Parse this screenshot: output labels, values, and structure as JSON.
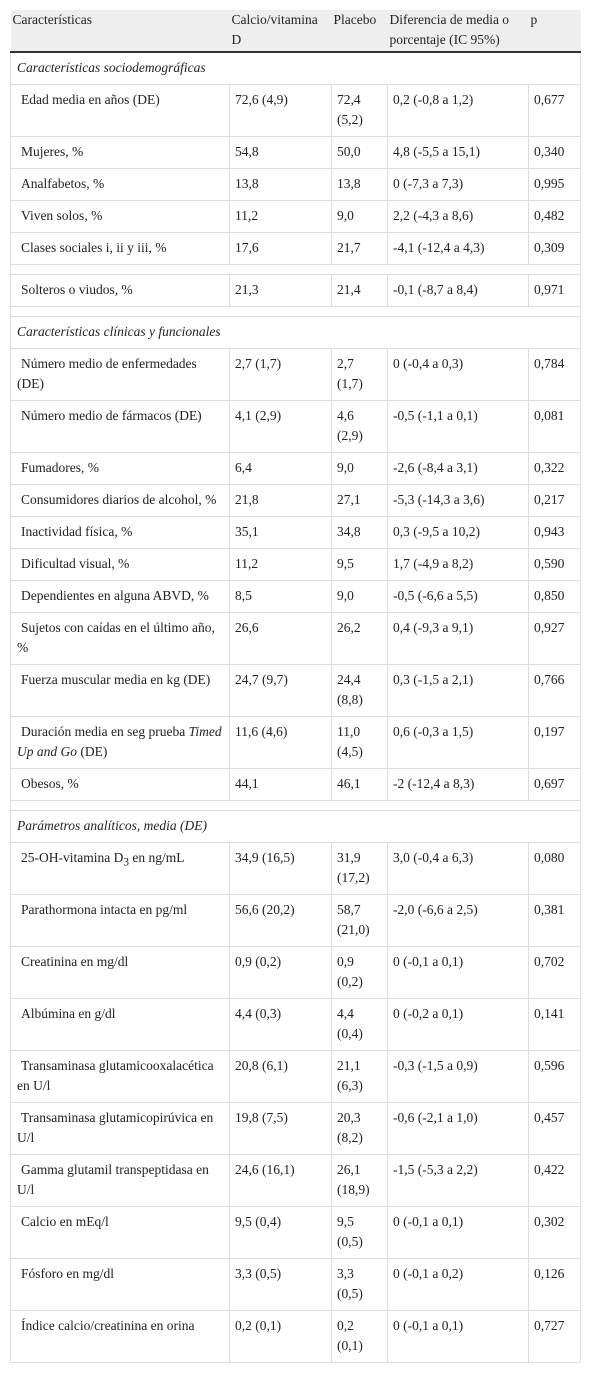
{
  "table": {
    "header": [
      "Características",
      "Calcio/vitamina D",
      "Placebo",
      "Diferencia de media o porcentaje (IC 95%)",
      "p"
    ],
    "sections": [
      {
        "title": "Características sociodemográficas",
        "rows": [
          [
            "Edad media en años (DE)",
            "72,6 (4,9)",
            "72,4 (5,2)",
            "0,2 (-0,8 a 1,2)",
            "0,677"
          ],
          [
            "Mujeres, %",
            "54,8",
            "50,0",
            "4,8 (-5,5 a 15,1)",
            "0,340"
          ],
          [
            "Analfabetos, %",
            "13,8",
            "13,8",
            "0 (-7,3 a 7,3)",
            "0,995"
          ],
          [
            "Viven solos, %",
            "11,2",
            "9,0",
            "2,2 (-4,3 a 8,6)",
            "0,482"
          ],
          [
            "Clases sociales i, ii y iii, %",
            "17,6",
            "21,7",
            "-4,1 (-12,4 a 4,3)",
            "0,309"
          ],
          null,
          [
            "Solteros o viudos, %",
            "21,3",
            "21,4",
            "-0,1 (-8,7 a 8,4)",
            "0,971"
          ]
        ]
      },
      {
        "title": "Características clínicas y funcionales",
        "rows": [
          [
            "Número medio de enfermedades (DE)",
            "2,7 (1,7)",
            "2,7 (1,7)",
            "0 (-0,4 a 0,3)",
            "0,784"
          ],
          [
            "Número medio de fármacos (DE)",
            "4,1 (2,9)",
            "4,6 (2,9)",
            "-0,5 (-1,1 a 0,1)",
            "0,081"
          ],
          [
            "Fumadores, %",
            "6,4",
            "9,0",
            "-2,6 (-8,4 a 3,1)",
            "0,322"
          ],
          [
            "Consumidores diarios de alcohol, %",
            "21,8",
            "27,1",
            "-5,3 (-14,3 a 3,6)",
            "0,217"
          ],
          [
            "Inactividad física, %",
            "35,1",
            "34,8",
            "0,3 (-9,5 a 10,2)",
            "0,943"
          ],
          [
            "Dificultad visual, %",
            "11,2",
            "9,5",
            "1,7 (-4,9 a 8,2)",
            "0,590"
          ],
          [
            "Dependientes en alguna ABVD, %",
            "8,5",
            "9,0",
            "-0,5 (-6,6 a 5,5)",
            "0,850"
          ],
          [
            "Sujetos con caídas en el último año, %",
            "26,6",
            "26,2",
            "0,4 (-9,3 a 9,1)",
            "0,927"
          ],
          [
            "Fuerza muscular media en kg (DE)",
            "24,7 (9,7)",
            "24,4 (8,8)",
            "0,3 (-1,5 a 2,1)",
            "0,766"
          ],
          [
            [
              {
                "text": "Duración media en seg prueba "
              },
              {
                "text": "Timed Up and Go",
                "italic": true
              },
              {
                "text": " (DE)"
              }
            ],
            "11,6 (4,6)",
            "11,0 (4,5)",
            "0,6 (-0,3 a 1,5)",
            "0,197"
          ],
          [
            "Obesos, %",
            "44,1",
            "46,1",
            "-2 (-12,4 a 8,3)",
            "0,697"
          ]
        ]
      },
      {
        "title": "Parámetros analíticos, media (DE)",
        "rows": [
          [
            [
              {
                "text": "25-OH-vitamina D"
              },
              {
                "text": "3",
                "sub": true
              },
              {
                "text": " en ng/mL"
              }
            ],
            "34,9 (16,5)",
            "31,9 (17,2)",
            "3,0 (-0,4 a 6,3)",
            "0,080"
          ],
          [
            "Parathormona intacta en pg/ml",
            "56,6 (20,2)",
            "58,7 (21,0)",
            "-2,0 (-6,6 a 2,5)",
            "0,381"
          ],
          [
            "Creatinina en mg/dl",
            "0,9 (0,2)",
            "0,9 (0,2)",
            "0 (-0,1 a 0,1)",
            "0,702"
          ],
          [
            "Albúmina en g/dl",
            "4,4 (0,3)",
            "4,4 (0,4)",
            "0 (-0,2 a 0,1)",
            "0,141"
          ],
          [
            "Transaminasa glutamicooxalacética en U/l",
            "20,8 (6,1)",
            "21,1 (6,3)",
            "-0,3 (-1,5 a 0,9)",
            "0,596"
          ],
          [
            "Transaminasa glutamicopirúvica en U/l",
            "19,8 (7,5)",
            "20,3 (8,2)",
            "-0,6 (-2,1 a 1,0)",
            "0,457"
          ],
          [
            "Gamma glutamil transpeptidasa en U/l",
            "24,6 (16,1)",
            "26,1 (18,9)",
            "-1,5 (-5,3 a 2,2)",
            "0,422"
          ],
          [
            "Calcio en mEq/l",
            "9,5 (0,4)",
            "9,5 (0,5)",
            "0 (-0,1 a 0,1)",
            "0,302"
          ],
          [
            "Fósforo en mg/dl",
            "3,3 (0,5)",
            "3,3 (0,5)",
            "0 (-0,1 a 0,2)",
            "0,126"
          ],
          [
            "Índice calcio/creatinina en orina",
            "0,2 (0,1)",
            "0,2 (0,1)",
            "0 (-0,1 a 0,1)",
            "0,727"
          ]
        ]
      }
    ]
  }
}
